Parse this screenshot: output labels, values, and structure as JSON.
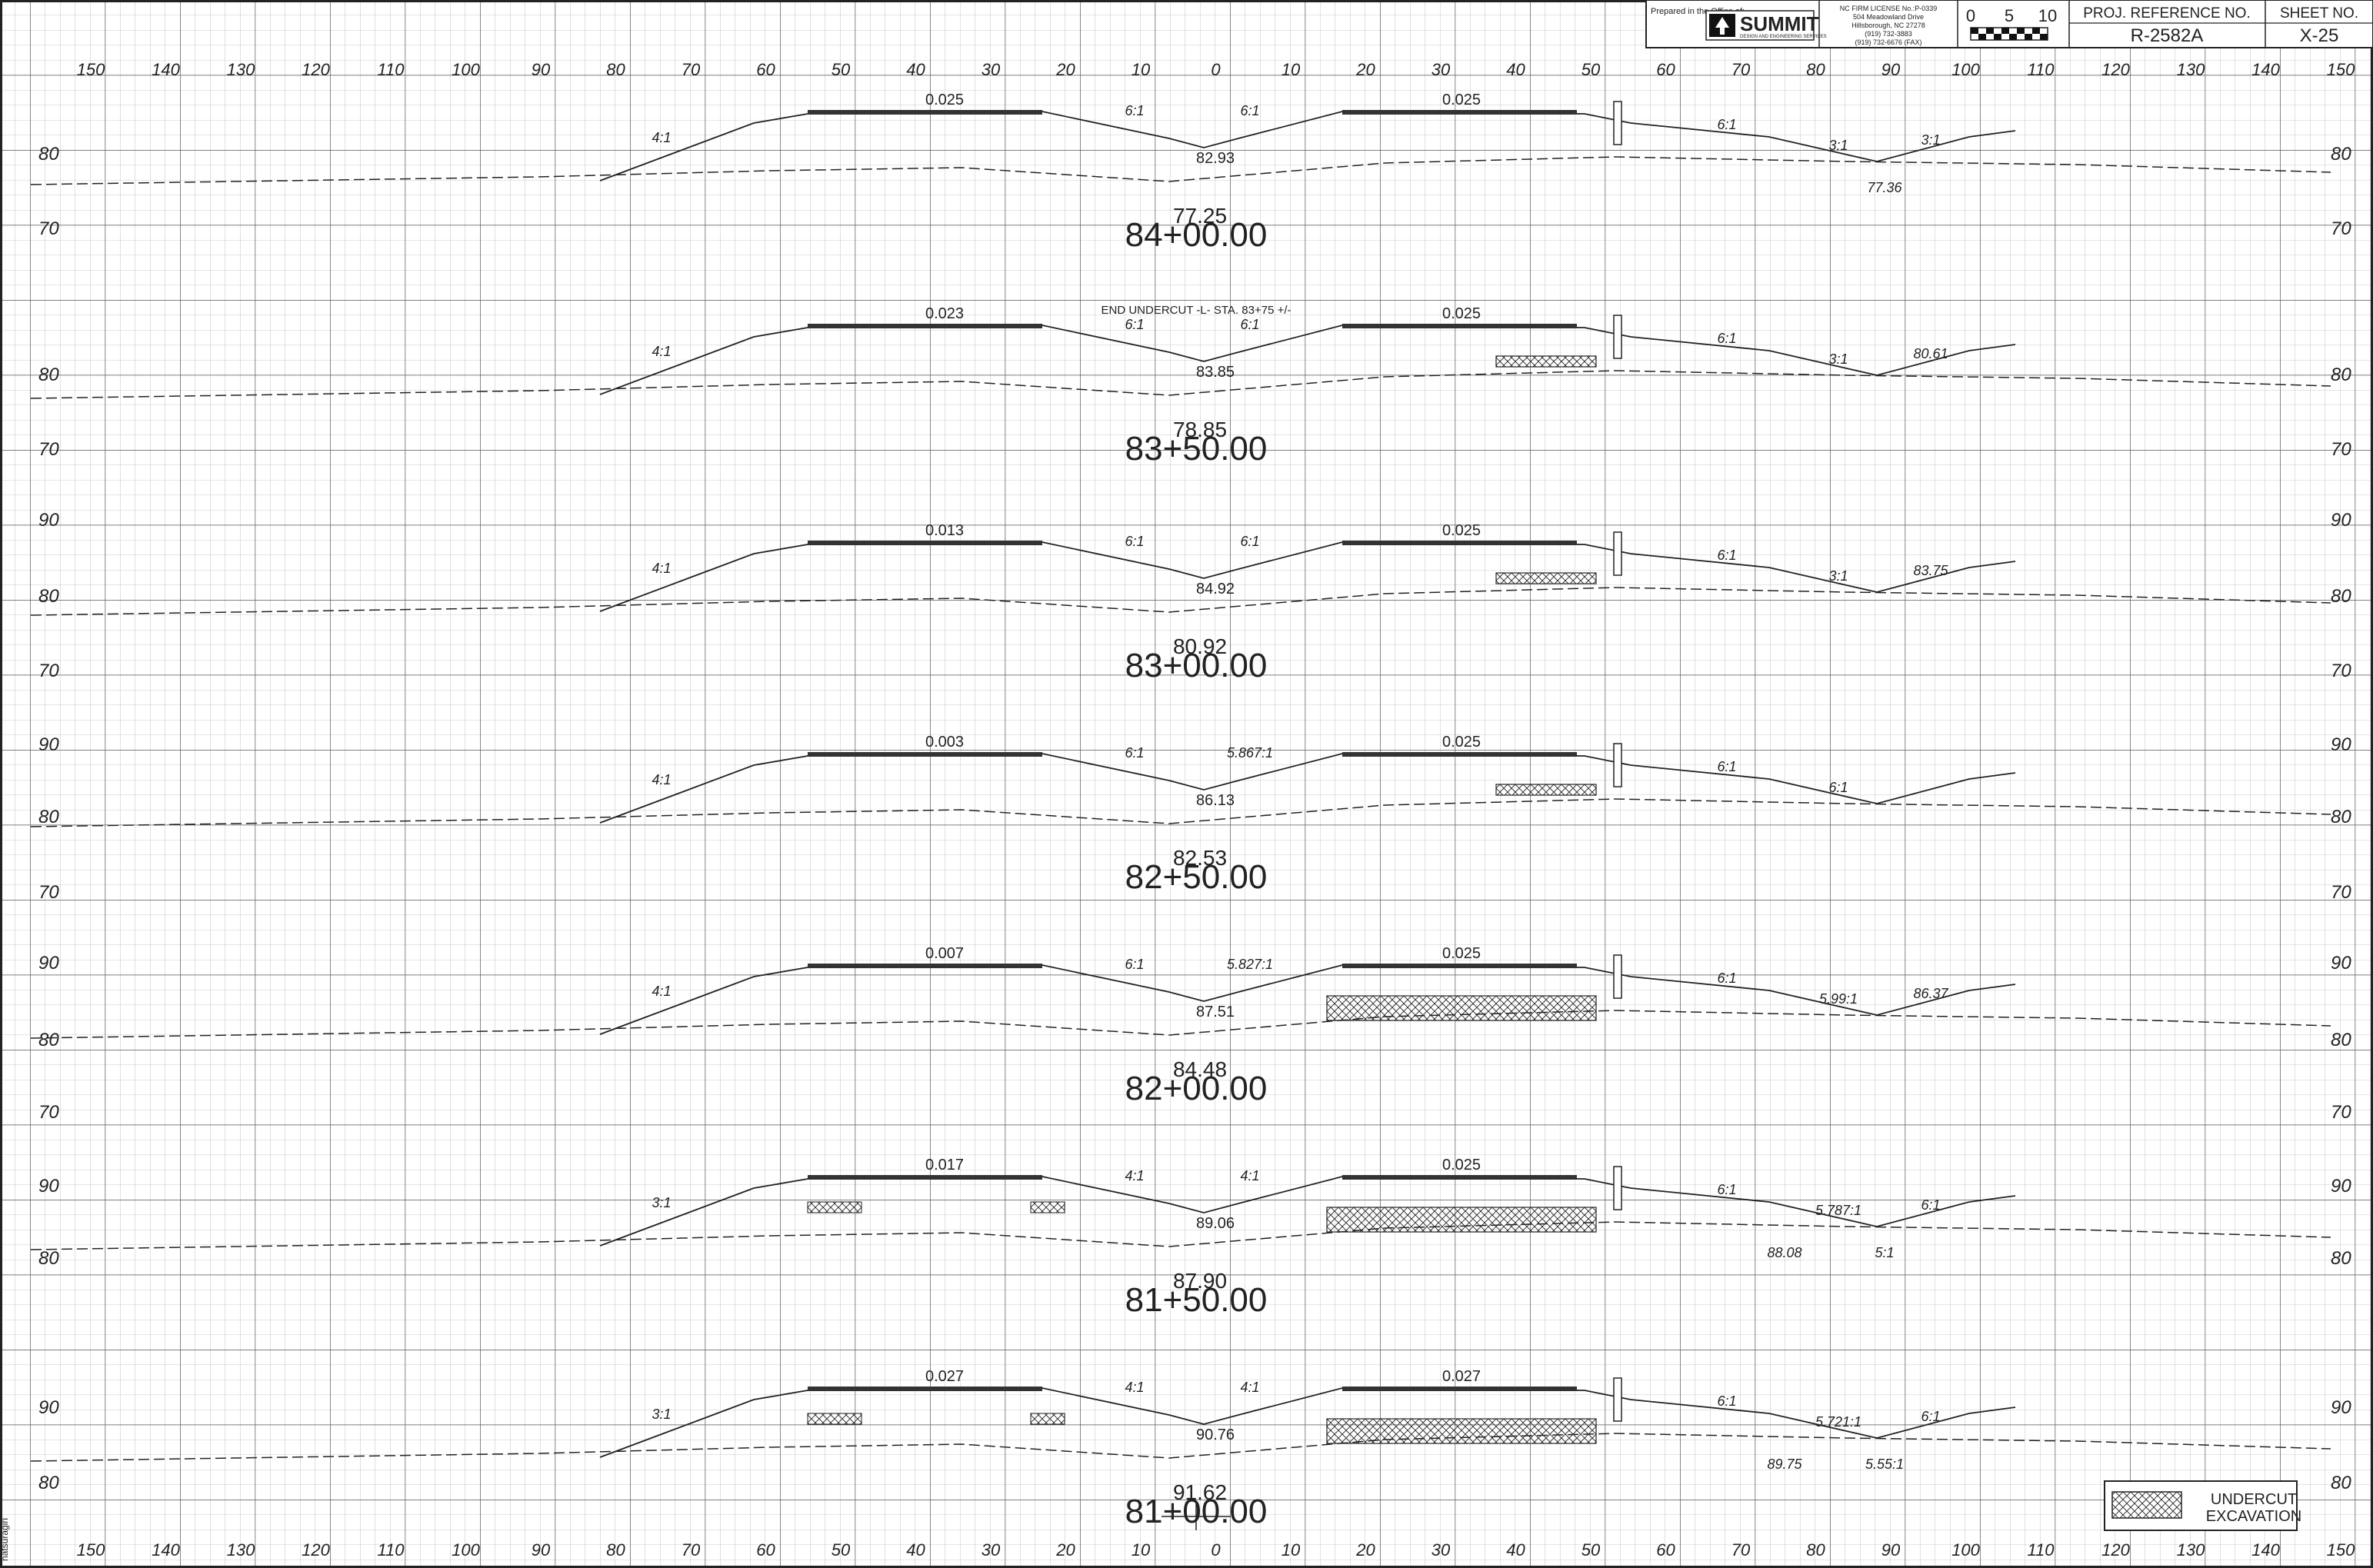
{
  "title_block": {
    "prepared_in_office_of": "Prepared in the Office of:",
    "firm_name": "SUMMIT",
    "firm_tagline": "DESIGN AND ENGINEERING SERVICES",
    "license_lines": [
      "NC FIRM LICENSE No.:P-0339",
      "504 Meadowland Drive",
      "Hillsborough, NC 27278",
      "(919) 732-3883",
      "(919) 732-6676 (FAX)"
    ],
    "scale_labels": [
      "0",
      "5",
      "10"
    ],
    "proj_ref_label": "PROJ. REFERENCE NO.",
    "proj_ref_value": "R-2582A",
    "sheet_no_label": "SHEET NO.",
    "sheet_no_value": "X-25"
  },
  "offset_labels": [
    "150",
    "140",
    "130",
    "120",
    "110",
    "100",
    "90",
    "80",
    "70",
    "60",
    "50",
    "40",
    "30",
    "20",
    "10",
    "0",
    "10",
    "20",
    "30",
    "40",
    "50",
    "60",
    "70",
    "80",
    "90",
    "100",
    "110",
    "120",
    "130",
    "140",
    "150"
  ],
  "sections": [
    {
      "station": "84+00.00",
      "elev_top": "77.25",
      "elev_labels": [
        "80",
        "70"
      ],
      "center_elev": "82.93",
      "left_slope": "0.025",
      "right_slope": "0.025",
      "annotations": [
        "4:1",
        "6:1",
        "6:1",
        "6:1",
        "3:1",
        "3:1",
        "77.36"
      ],
      "note": ""
    },
    {
      "station": "83+50.00",
      "elev_top": "78.85",
      "elev_labels": [
        "80",
        "70"
      ],
      "center_elev": "83.85",
      "left_slope": "0.023",
      "right_slope": "0.025",
      "annotations": [
        "4:1",
        "6:1",
        "6:1",
        "6:1",
        "3:1",
        "80.61"
      ],
      "note": "END UNDERCUT -L- STA. 83+75 +/-"
    },
    {
      "station": "83+00.00",
      "elev_top": "80.92",
      "elev_labels": [
        "90",
        "80",
        "70"
      ],
      "center_elev": "84.92",
      "left_slope": "0.013",
      "right_slope": "0.025",
      "annotations": [
        "4:1",
        "6:1",
        "6:1",
        "6:1",
        "3:1",
        "83.75"
      ],
      "note": ""
    },
    {
      "station": "82+50.00",
      "elev_top": "82.53",
      "elev_labels": [
        "90",
        "80",
        "70"
      ],
      "center_elev": "86.13",
      "left_slope": "0.003",
      "right_slope": "0.025",
      "annotations": [
        "4:1",
        "6:1",
        "5.867:1",
        "6:1",
        "6:1"
      ],
      "note": ""
    },
    {
      "station": "82+00.00",
      "elev_top": "84.48",
      "elev_labels": [
        "90",
        "80",
        "70"
      ],
      "center_elev": "87.51",
      "left_slope": "0.007",
      "right_slope": "0.025",
      "annotations": [
        "4:1",
        "6:1",
        "5.827:1",
        "6:1",
        "5.99:1",
        "86.37"
      ],
      "note": ""
    },
    {
      "station": "81+50.00",
      "elev_top": "87.90",
      "elev_labels": [
        "90",
        "80"
      ],
      "center_elev": "89.06",
      "left_slope": "0.017",
      "right_slope": "0.025",
      "annotations": [
        "3:1",
        "4:1",
        "4:1",
        "6:1",
        "5.787:1",
        "6:1",
        "5:1",
        "88.08"
      ],
      "note": ""
    },
    {
      "station": "81+00.00",
      "elev_top": "91.62",
      "elev_labels": [
        "90",
        "80"
      ],
      "center_elev": "90.76",
      "left_slope": "0.027",
      "right_slope": "0.027",
      "annotations": [
        "3:1",
        "4:1",
        "4:1",
        "6:1",
        "5.721:1",
        "6:1",
        "5.55:1",
        "89.75"
      ],
      "note": ""
    }
  ],
  "legend": {
    "line1": "UNDERCUT",
    "line2": "EXCAVATION"
  },
  "side_text": "natsuragiri"
}
